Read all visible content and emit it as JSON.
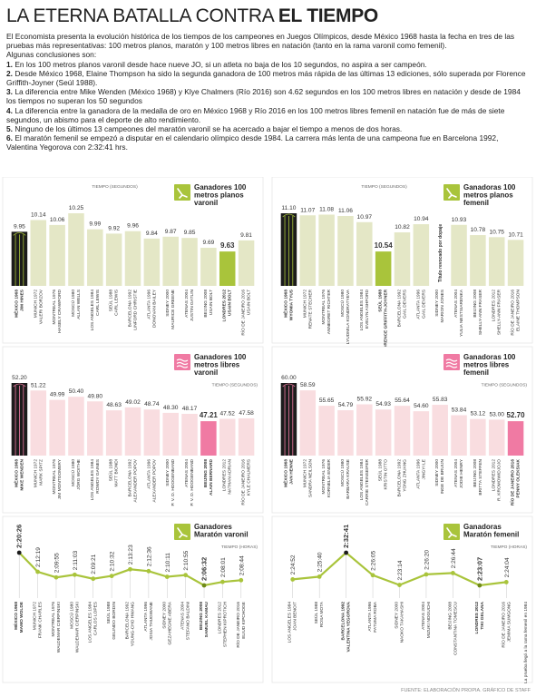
{
  "header": {
    "title_parts": [
      "LA ETERNA BATALLA CONTRA ",
      "EL TIEMPO"
    ],
    "intro": "El Economista presenta la evolución histórica de los tiempos de los campeones en Juegos Olímpicos, desde México 1968 hasta la fecha en tres de las pruebas más representativas: 100 metros planos, maratón y 100 metros libres en natación (tanto en la rama varonil como femenil).",
    "lead": "Algunas conclusiones son:",
    "conclusions": [
      {
        "number": "1.",
        "text": "En los 100 metros planos varonil desde hace nueve JO, si un atleta no baja de los 10 segundos, no aspira a ser campeón."
      },
      {
        "number": "2.",
        "text": "Desde México 1968, Elaine Thompson ha sido la segunda ganadora de 100 metros más rápida de las últimas 13 ediciones, sólo superada por Florence Griffith-Joyner (Seúl 1988)."
      },
      {
        "number": "3.",
        "text": "La diferencia entre Mike Wenden (México 1968) y Klye Chalmers (Río 2016) son 4.62 segundos en los 100 metros libres en natación y desde de 1984 los tiempos no superan los 50 segundos"
      },
      {
        "number": "4.",
        "text": "La diferencia entre la ganadora de la medalla de oro en México 1968 y Río 2016 en los 100 metros libres femenil en natación fue de más de siete segundos, un abismo para el deporte de alto rendimiento."
      },
      {
        "number": "5.",
        "text": "Ninguno de los últimos 13 campeones del maratón varonil se ha acercado a bajar el tiempo a menos de dos horas."
      },
      {
        "number": "6.",
        "text": "El maratón femenil se empezó a disputar en el calendario olímpico desde 1984. La carrera más lenta de una campeona fue en Barcelona 1992, Valentina Yegorova con 2:32:41 hrs."
      }
    ]
  },
  "chart_data": [
    {
      "type": "bar",
      "title": [
        "Ganadores 100",
        "metros planos",
        "varonil"
      ],
      "unit": "TIEMPO (SEGUNDOS)",
      "categories": [
        "MÉXICO 1968",
        "MUNICH 1972",
        "MONTREAL 1976",
        "MOSCÚ 1980",
        "LOS ANGELES 1984",
        "SEÚL 1988",
        "BARCELONA 1992",
        "ATLANTA 1996",
        "SIDNEY 2000",
        "ATENAS 2004",
        "BEIJING 2008",
        "LONDRES 2012",
        "RÍO DE JANEIRO 2016"
      ],
      "athletes": [
        "JIM HINES",
        "VALERI BORZOV",
        "HASELY CRAWFORD",
        "ALLAN WELLS",
        "CARL LEWIS",
        "CARL LEWIS",
        "LINFORD CHRISTIE",
        "DONOVAN BAILEY",
        "MAURICE GREENE",
        "JUSTIN GATLIN",
        "USAIN BOLT",
        "USAIN BOLT",
        "USAIN BOLT"
      ],
      "values": [
        9.95,
        10.14,
        10.06,
        10.25,
        9.99,
        9.92,
        9.96,
        9.84,
        9.87,
        9.85,
        9.69,
        9.63,
        9.81
      ],
      "value_labels": [
        "9.95",
        "10.14",
        "10.06",
        "10.25",
        "9.99",
        "9.92",
        "9.96",
        "9.84",
        "9.87",
        "9.85",
        "9.69",
        "9.63",
        "9.81"
      ],
      "color": "#e4e7c6",
      "accent": "#a9c43b",
      "colors": [
        "#1c1c1c",
        "#e4e7c6",
        "#e4e7c6",
        "#e4e7c6",
        "#e4e7c6",
        "#e4e7c6",
        "#e4e7c6",
        "#e4e7c6",
        "#e4e7c6",
        "#e4e7c6",
        "#e4e7c6",
        "#a9c43b",
        "#e4e7c6"
      ]
    },
    {
      "type": "bar",
      "title": [
        "Ganadoras 100",
        "metros planos",
        "femenil"
      ],
      "unit": "TIEMPO (SEGUNDOS)",
      "annotation": "Título revocado por dopaje",
      "categories": [
        "MÉXICO 1968",
        "MUNICH 1972",
        "MONTREAL 1976",
        "MOSCÚ 1980",
        "LOS ANGELES 1984",
        "SEÚL 1988",
        "BARCELONA 1992",
        "ATLANTA 1996",
        "SIDNEY 2000",
        "ATENAS 2004",
        "BEIJING 2008",
        "LONDRES 2012",
        "RÍO DE JANEIRO 2016"
      ],
      "athletes": [
        "WYOMIA TYUS",
        "RENATE STECHER",
        "ANNEGRET RICHTER",
        "LYUDMILA KONDRATYEVA",
        "EVELYN ASHFORD",
        "FLORENCE GRIFFITH-JOYNER",
        "GAIL DEVERS",
        "GAIL DEVERS",
        "MARION JONES",
        "YULIA NESTSIARENKA",
        "SHELLY-ANN FRASER",
        "SHELLY-ANN FRASER",
        "ELAINE THOMPSON"
      ],
      "values": [
        11.1,
        11.07,
        11.08,
        11.06,
        10.97,
        10.54,
        10.82,
        10.94,
        null,
        10.93,
        10.78,
        10.75,
        10.71
      ],
      "value_labels": [
        "11.10",
        "11.07",
        "11.08",
        "11.06",
        "10.97",
        "10.54",
        "10.82",
        "10.94",
        null,
        "10.93",
        "10.78",
        "10.75",
        "10.71"
      ],
      "color": "#e4e7c6",
      "accent": "#a9c43b",
      "colors": [
        "#1c1c1c",
        "#e4e7c6",
        "#e4e7c6",
        "#e4e7c6",
        "#e4e7c6",
        "#a9c43b",
        "#e4e7c6",
        "#e4e7c6",
        "#e4e7c6",
        "#e4e7c6",
        "#e4e7c6",
        "#e4e7c6",
        "#e4e7c6"
      ]
    },
    {
      "type": "bar",
      "title": [
        "Ganadores 100",
        "metros libres",
        "varonil"
      ],
      "unit": "TIEMPO (SEGUNDOS)",
      "categories": [
        "MÉXICO 1968",
        "MUNICH 1972",
        "MONTREAL 1976",
        "MOSCÚ 1980",
        "LOS ANGELES 1984",
        "SEÚL 1988",
        "BARCELONA 1992",
        "ATLANTA 1996",
        "SIDNEY 2000",
        "ATENAS 2004",
        "BEIJING 2008",
        "LONDRES 2012",
        "RÍO DE JANEIRO 2016"
      ],
      "athletes": [
        "MIKE WENDEN",
        "MARK SPITZ",
        "JIM MONTGOMERY",
        "JÖRG WOITHE",
        "ROWDY GAINES",
        "MATT BIONDI",
        "ALEXANDER POPOV",
        "ALEXANDER POPOV",
        "P. V. D. HOOGENBAND",
        "P. V. D. HOOGENBAND",
        "ALAIN BERNARD",
        "NATHAN ADRIAN",
        "KYLE CHALMERS"
      ],
      "values": [
        52.2,
        51.22,
        49.99,
        50.4,
        49.8,
        48.63,
        49.02,
        48.74,
        48.3,
        48.17,
        47.21,
        47.52,
        47.58
      ],
      "value_labels": [
        "52.20",
        "51.22",
        "49.99",
        "50.40",
        "49.80",
        "48.63",
        "49.02",
        "48.74",
        "48.30",
        "48.17",
        "47.21",
        "47.52",
        "47.58"
      ],
      "color": "#f9dde0",
      "accent": "#f07aa3",
      "colors": [
        "#1c1c1c",
        "#f9dde0",
        "#f9dde0",
        "#f9dde0",
        "#f9dde0",
        "#f9dde0",
        "#f9dde0",
        "#f9dde0",
        "#f9dde0",
        "#f9dde0",
        "#f07aa3",
        "#f9dde0",
        "#f9dde0"
      ]
    },
    {
      "type": "bar",
      "title": [
        "Ganadoras 100",
        "metros libres",
        "femenil"
      ],
      "unit": "TIEMPO (SEGUNDOS)",
      "categories": [
        "MÉXICO 1968",
        "MUNICH 1972",
        "MONTREAL 1976",
        "MOSCÚ 1980",
        "LOS ANGELES 1984",
        "SEÚL 1988",
        "BARCELONA 1992",
        "ATLANTA 1996",
        "SIDNEY 2000",
        "ATENAS 2004",
        "BEIJING 2008",
        "LONDRES 2012",
        "RÍO DE JANEIRO 2016"
      ],
      "athletes": [
        "JAN HENNE",
        "SANDRA NEILSON",
        "KORNELIA ENDER",
        "BARBARA KRAUSE",
        "CARRIE STEINSEIFER",
        "KRISTIN OTTO",
        "YONG ZHUANG",
        "JINGYI LE",
        "INGE DE BRUIJN",
        "JODIE HENRY",
        "BRITTA STEFFEN",
        "R. KROMOWIDJOJO",
        "PENNY OLEKSIAK"
      ],
      "values": [
        60.0,
        58.59,
        55.65,
        54.79,
        55.92,
        54.93,
        55.64,
        54.6,
        55.83,
        53.84,
        53.12,
        53.0,
        52.7
      ],
      "value_labels": [
        "60.00",
        "58.59",
        "55.65",
        "54.79",
        "55.92",
        "54.93",
        "55.64",
        "54.60",
        "55.83",
        "53.84",
        "53.12",
        "53.00",
        "52.70"
      ],
      "color": "#f9dde0",
      "accent": "#f07aa3",
      "colors": [
        "#1c1c1c",
        "#f9dde0",
        "#f9dde0",
        "#f9dde0",
        "#f9dde0",
        "#f9dde0",
        "#f9dde0",
        "#f9dde0",
        "#f9dde0",
        "#f9dde0",
        "#f9dde0",
        "#f9dde0",
        "#f07aa3"
      ]
    },
    {
      "type": "line",
      "title": [
        "Ganadores",
        "Maratón varonil"
      ],
      "unit": "TIEMPO (HORAS)",
      "categories": [
        "MÉXICO 1968",
        "MUNICH 1972",
        "MONTREAL 1976",
        "MOSCÚ 1980",
        "LOS ANGELES 1984",
        "SEÚL 1988",
        "BARCELONA 1992",
        "ATLANTA 1996",
        "SIDNEY 2000",
        "ATENAS 2004",
        "BEIJING 2008",
        "LONDRES 2012",
        "RÍO DE JANEIRO 2016"
      ],
      "athletes": [
        "MAMO WOLDE",
        "FRANK CHARLES",
        "WALDEMAR CIERPINSKI",
        "WALDEMAR CIERPINSKI",
        "CARLOS LOPES",
        "GELINDO BORDIN",
        "YOUNG-CHO HWANG",
        "JOSIA THUGWANE",
        "GEZAHEGNE ABERA",
        "STEFANO BALDINI",
        "SAMUEL KAMAU",
        "STEPHEN KIPROTICH",
        "ELIUD KIPCHOGE"
      ],
      "values": [
        8426,
        7939,
        7795,
        7863,
        7761,
        7832,
        8003,
        7956,
        7811,
        7855,
        7592,
        7681,
        7724
      ],
      "value_labels": [
        "2:20:26",
        "2:12:19",
        "2:09:55",
        "2:11:03",
        "2:09:21",
        "2:10:32",
        "2:13:23",
        "2:12:36",
        "2:10:11",
        "2:10:55",
        "2:06:32",
        "2:08:01",
        "2:08:44"
      ],
      "color": "#a9c43b",
      "accent": "#a9c43b",
      "colors": [
        "#1c1c1c",
        "#a9c43b",
        "#a9c43b",
        "#a9c43b",
        "#a9c43b",
        "#a9c43b",
        "#a9c43b",
        "#a9c43b",
        "#a9c43b",
        "#a9c43b",
        "#6f8a17",
        "#a9c43b",
        "#a9c43b"
      ]
    },
    {
      "type": "line",
      "title": [
        "Ganadoras",
        "Maratón femenil"
      ],
      "unit": "TIEMPO (HORAS)",
      "annotation": "La prueba llegó a la rama femenil en 1984",
      "categories": [
        "LOS ANGELES 1984",
        "SEÚL 1988",
        "BARCELONA 1992",
        "ATLANTA 1996",
        "SIDNEY 2000",
        "ATENAS 2004",
        "BEIJING 2008",
        "LONDRES 2012",
        "RÍO DE JANEIRO 2016"
      ],
      "athletes": [
        "JOAN BENOIT",
        "ROSA MOTA",
        "VALENTINA YEGOROVA",
        "FATUMA ROBA",
        "NAOKO TAKAHASHI",
        "MIZUKI NOGUCHI",
        "CONSTANTINA TOMESCU",
        "TIKI GELANA",
        "JEMIMA SUMGONG"
      ],
      "values": [
        8692,
        8740,
        9161,
        8765,
        8594,
        8780,
        8804,
        8587,
        8644
      ],
      "value_labels": [
        "2:24:52",
        "2:25:40",
        "2:32:41",
        "2:26:05",
        "2:23:14",
        "2:26:20",
        "2:26:44",
        "2:23:07",
        "2:24:04"
      ],
      "color": "#a9c43b",
      "accent": "#a9c43b",
      "colors": [
        "#a9c43b",
        "#a9c43b",
        "#1c1c1c",
        "#a9c43b",
        "#a9c43b",
        "#a9c43b",
        "#a9c43b",
        "#6f8a17",
        "#a9c43b"
      ]
    }
  ],
  "footer": "FUENTE: ELABORACIÓN PROPIA. GRÁFICO DE STAFF"
}
